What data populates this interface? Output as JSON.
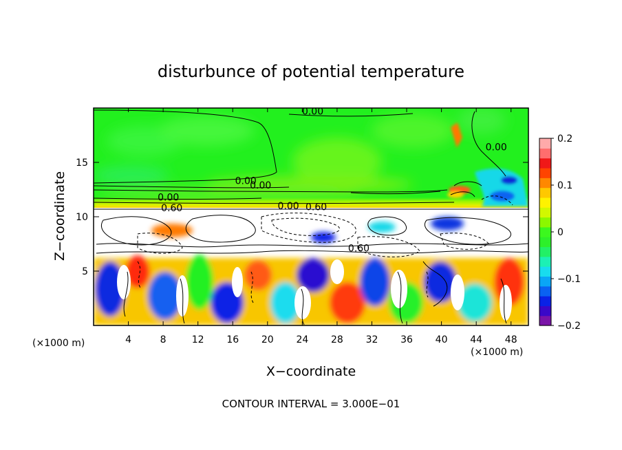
{
  "chart_data": {
    "type": "heatmap",
    "title": "disturbunce of potential temperature",
    "xlabel": "X−coordinate",
    "ylabel": "Z−coordinate",
    "x_unit_left": "(×1000 m)",
    "x_unit_right": "(×1000 m)",
    "footer": "CONTOUR INTERVAL = 3.000E−01",
    "xlim": [
      0,
      50
    ],
    "ylim": [
      0,
      20
    ],
    "x_ticks": [
      4,
      8,
      12,
      16,
      20,
      24,
      28,
      32,
      36,
      40,
      44,
      48
    ],
    "y_ticks": [
      5,
      10,
      15
    ],
    "colorbar": {
      "range": [
        -0.2,
        0.2
      ],
      "tick_labels": [
        "0.2",
        "0.1",
        "0",
        "−0.1",
        "−0.2"
      ],
      "tick_values": [
        0.2,
        0.1,
        0,
        -0.1,
        -0.2
      ],
      "colors": [
        "#7a14a8",
        "#3a08c8",
        "#0a22e6",
        "#0a62f2",
        "#0aa6f6",
        "#18dcee",
        "#1cf0b4",
        "#22f066",
        "#2df02a",
        "#3cf81e",
        "#8cf800",
        "#d2f800",
        "#fff200",
        "#ffc800",
        "#ff8800",
        "#ff4400",
        "#f01818",
        "#ff6e6e",
        "#ffaaaa"
      ]
    },
    "contour_labels": [
      {
        "text": "0.00",
        "x": 25.2,
        "y": 19.4
      },
      {
        "text": "0.00",
        "x": 46.3,
        "y": 16.1
      },
      {
        "text": "0.00",
        "x": 17.5,
        "y": 13.0
      },
      {
        "text": "0.00",
        "x": 19.2,
        "y": 12.6
      },
      {
        "text": "0.00",
        "x": 8.6,
        "y": 11.5
      },
      {
        "text": "0.60",
        "x": 9.0,
        "y": 10.5
      },
      {
        "text": "0.00",
        "x": 22.4,
        "y": 10.7
      },
      {
        "text": "0.60",
        "x": 25.6,
        "y": 10.6
      },
      {
        "text": "0.60",
        "x": 30.5,
        "y": 6.8
      }
    ]
  }
}
